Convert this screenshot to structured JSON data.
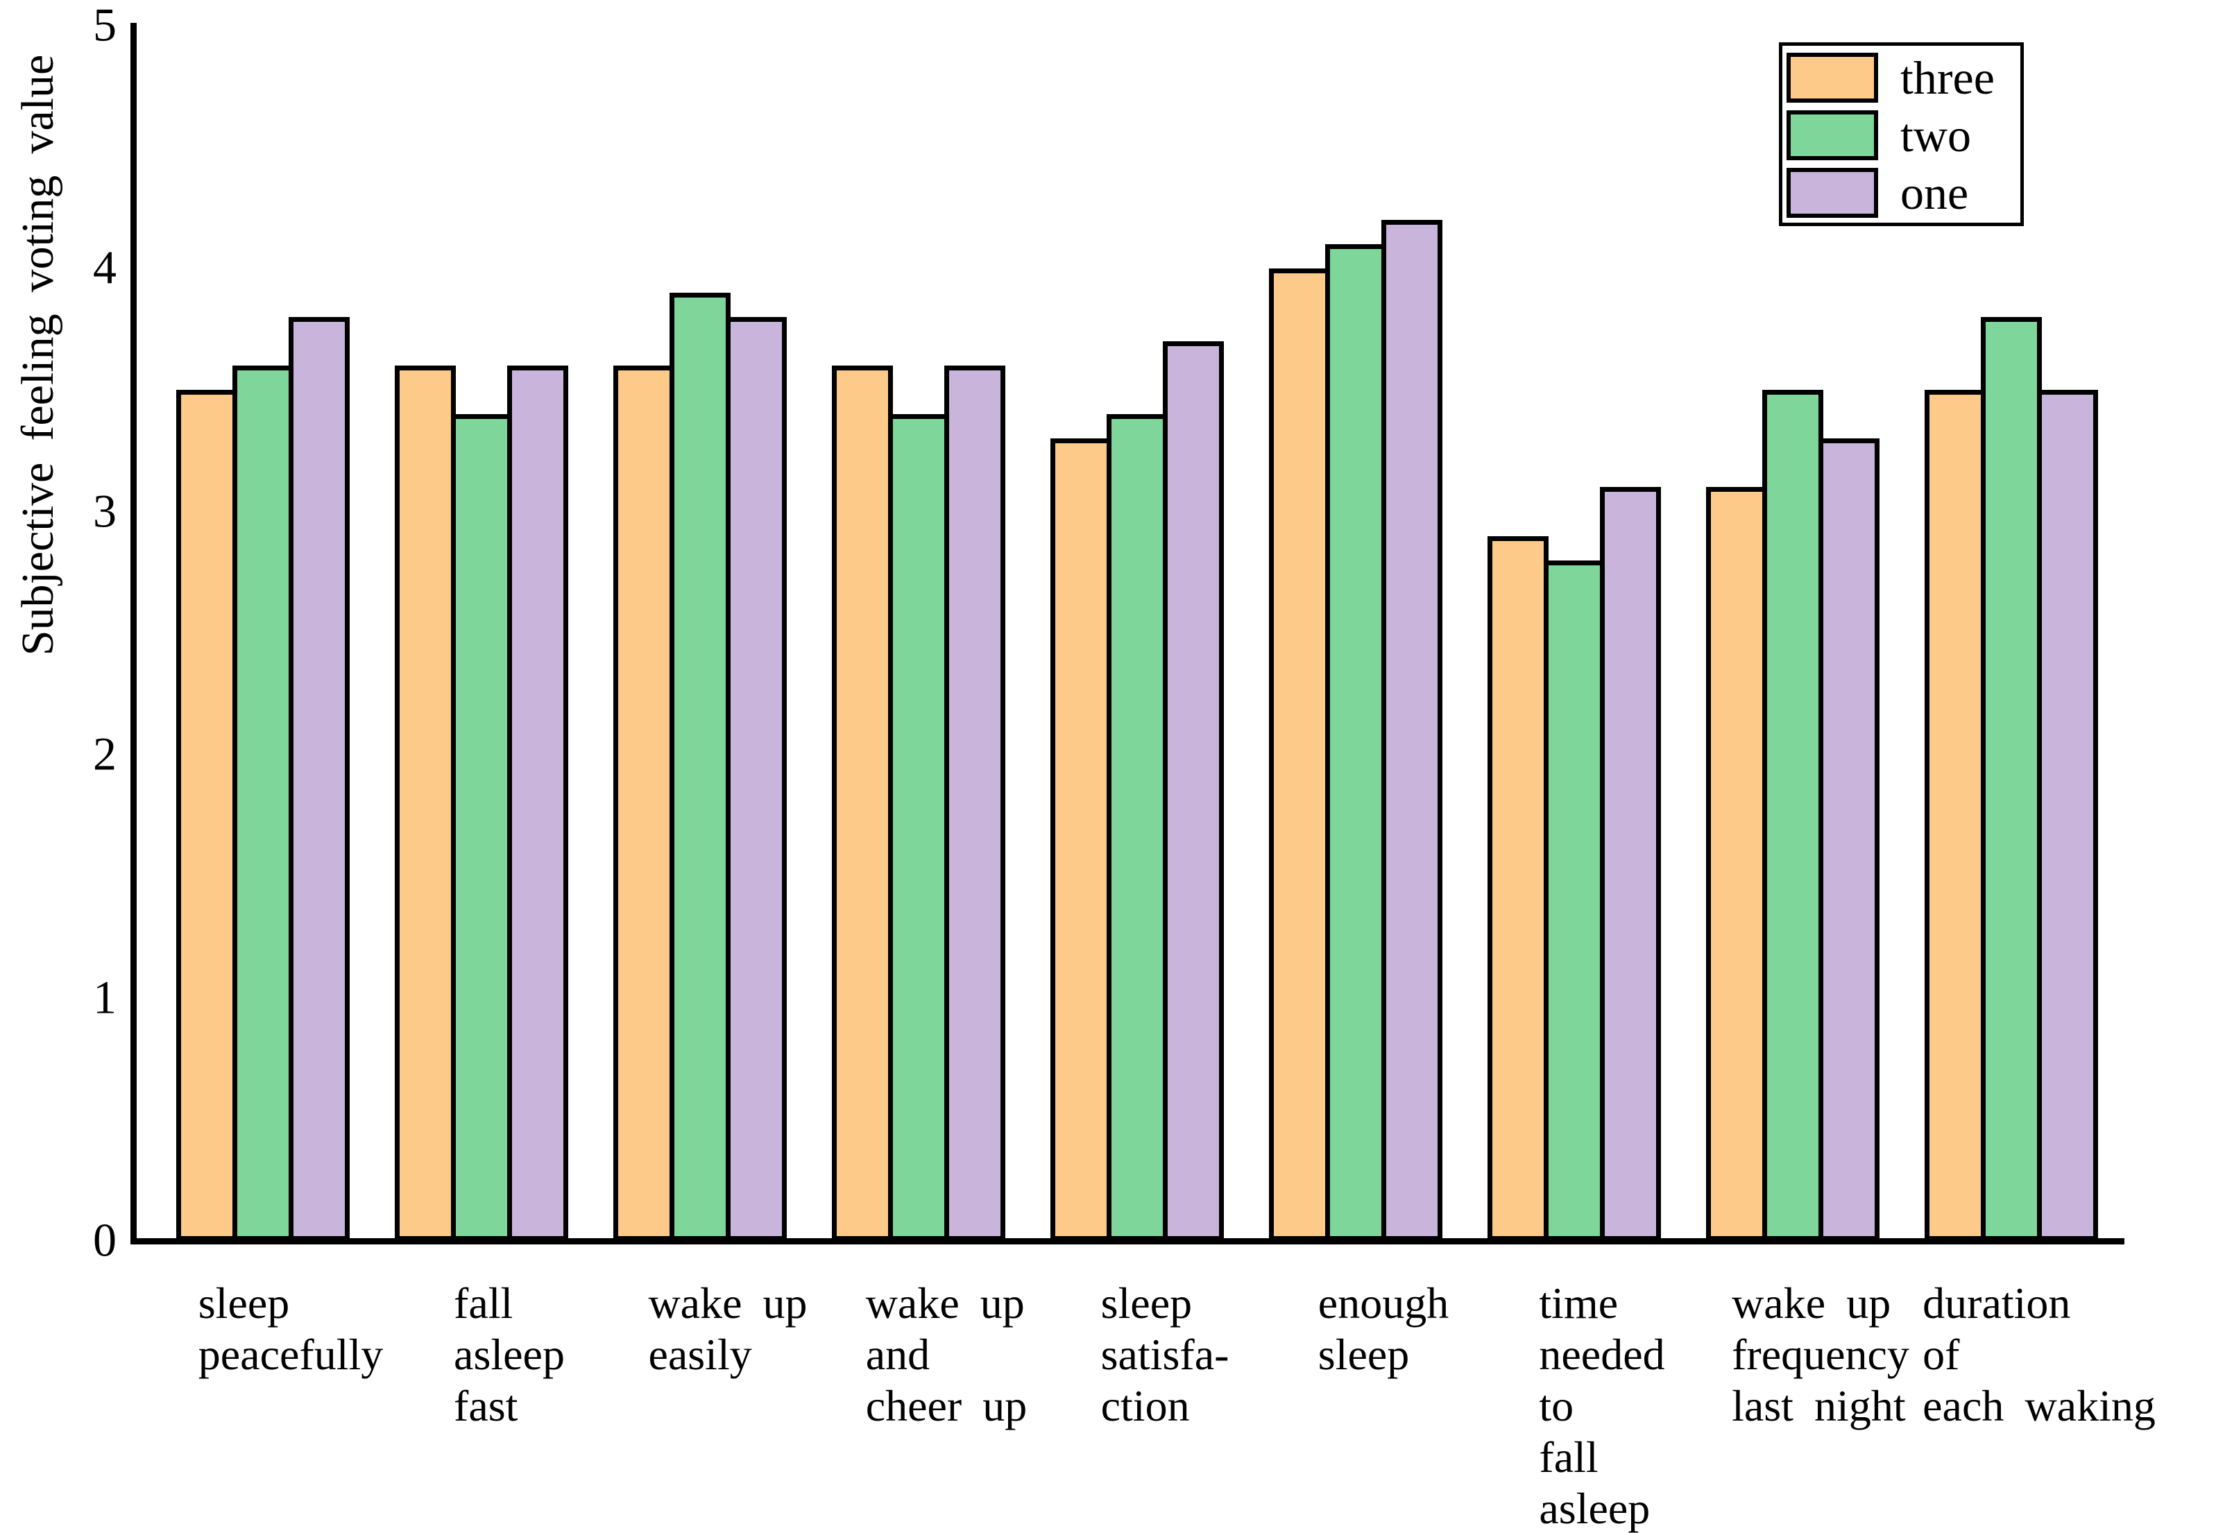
{
  "chart_data": {
    "type": "bar",
    "title": "",
    "xlabel": "",
    "ylabel": "Subjective feeling voting value",
    "ylim": [
      0,
      5
    ],
    "yticks": [
      0,
      1,
      2,
      3,
      4,
      5
    ],
    "grid": false,
    "legend_position": "upper right",
    "background_color": "#ffffff",
    "axis_color": "#000000",
    "bar_border_color": "#000000",
    "categories": [
      "sleep\npeacefully",
      "fall\nasleep\nfast",
      "wake up\neasily",
      "wake up\nand\ncheer up",
      "sleep\nsatisfa-\nction",
      "enough\nsleep",
      "time\nneeded\nto\nfall\nasleep",
      "wake up\nfrequency\nlast night",
      "duration\nof\neach waking"
    ],
    "series": [
      {
        "name": "three",
        "color": "#fdca8a",
        "values": [
          3.5,
          3.6,
          3.6,
          3.6,
          3.3,
          4.0,
          2.9,
          3.1,
          3.5
        ]
      },
      {
        "name": "two",
        "color": "#7ed69a",
        "values": [
          3.6,
          3.4,
          3.9,
          3.4,
          3.4,
          4.1,
          2.8,
          3.5,
          3.8
        ]
      },
      {
        "name": "one",
        "color": "#c9b4db",
        "values": [
          3.8,
          3.6,
          3.8,
          3.6,
          3.7,
          4.2,
          3.1,
          3.3,
          3.5
        ]
      }
    ]
  }
}
